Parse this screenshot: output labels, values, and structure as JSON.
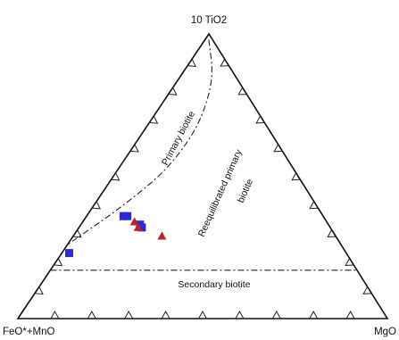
{
  "chart_data": {
    "type": "ternary",
    "apices": {
      "top": "10 TiO2",
      "left": "FeO*+MnO",
      "right": "MgO"
    },
    "fields": {
      "primary": "Primary biotite",
      "reequilibrated": "Reequilibrated primary biotite",
      "secondary": "Secondary biotite"
    },
    "series": [
      {
        "marker": "square",
        "color": "#2b2bd6",
        "points": [
          {
            "ti": 0.36,
            "mg": 0.1
          },
          {
            "ti": 0.36,
            "mg": 0.11
          },
          {
            "ti": 0.33,
            "mg": 0.16
          },
          {
            "ti": 0.32,
            "mg": 0.17
          },
          {
            "ti": 0.23,
            "mg": 0.02
          }
        ]
      },
      {
        "marker": "triangle",
        "color": "#b82323",
        "points": [
          {
            "ti": 0.34,
            "mg": 0.14
          },
          {
            "ti": 0.32,
            "mg": 0.16
          },
          {
            "ti": 0.29,
            "mg": 0.24
          }
        ]
      }
    ],
    "boundaries": {
      "primary_reequilibrated": [
        [
          0.98,
          0.01
        ],
        [
          0.85,
          0.09
        ],
        [
          0.72,
          0.13
        ],
        [
          0.62,
          0.14
        ],
        [
          0.52,
          0.13
        ],
        [
          0.44,
          0.1
        ],
        [
          0.36,
          0.06
        ],
        [
          0.31,
          0.03
        ],
        [
          0.26,
          0.0
        ]
      ],
      "reequilibrated_secondary": [
        [
          0.17,
          0.0
        ],
        [
          0.17,
          0.83
        ]
      ]
    }
  }
}
